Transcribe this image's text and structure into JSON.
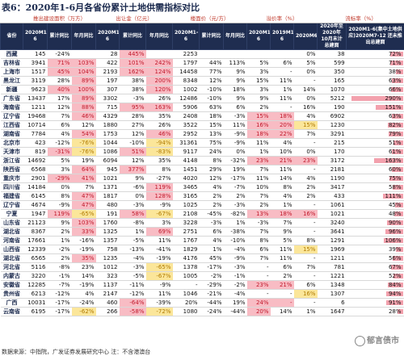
{
  "title": "表6：2020年1-6月各省份累计土地供需指标对比",
  "group_headers": [
    "推出建设面积（万方）",
    "出让金（亿元）",
    "楼面价（元/方）",
    "溢价率（%）",
    "流标率（%）"
  ],
  "columns": [
    "省份",
    "2020M1-6",
    "累计同比",
    "年月同比",
    "2020M1-6",
    "累计同比",
    "年月同比",
    "2020M1-6",
    "累计同比",
    "年月同比",
    "2020M1-6",
    "2019M1-6",
    "2020M6",
    "2020年至2020年10月末计总建面",
    "2020M1-6(集中土地供应)2020M7-12 还未推出总建面"
  ],
  "rows": [
    {
      "p": "西藏",
      "v": [
        "145",
        "-24%",
        "",
        "28",
        "445%",
        "",
        "2253",
        "",
        "",
        "",
        "",
        "0%",
        "38",
        "72%"
      ],
      "h": [
        0,
        0,
        0,
        0,
        1,
        0,
        0,
        0,
        0,
        0,
        0,
        0,
        0,
        1
      ]
    },
    {
      "p": "吉林省",
      "v": [
        "3941",
        "71%",
        "103%",
        "422",
        "101%",
        "242%",
        "1797",
        "44%",
        "113%",
        "5%",
        "6%",
        "5%",
        "599",
        "71%"
      ],
      "h": [
        0,
        1,
        1,
        0,
        1,
        1,
        0,
        0,
        0,
        0,
        0,
        0,
        0,
        1
      ]
    },
    {
      "p": "上海市",
      "v": [
        "1517",
        "45%",
        "104%",
        "2193",
        "162%",
        "124%",
        "14458",
        "77%",
        "9%",
        "3%",
        "-",
        "0%",
        "350",
        "38%"
      ],
      "h": [
        0,
        1,
        1,
        0,
        1,
        1,
        0,
        0,
        0,
        0,
        0,
        0,
        0,
        1
      ]
    },
    {
      "p": "黑龙江",
      "v": [
        "3119",
        "28%",
        "89%",
        "197",
        "38%",
        "200%",
        "8348",
        "12%",
        "9%",
        "15%",
        "11%",
        "-",
        "165",
        "63%"
      ],
      "h": [
        0,
        0,
        1,
        0,
        0,
        1,
        0,
        0,
        0,
        0,
        0,
        0,
        0,
        1
      ]
    },
    {
      "p": "新疆",
      "v": [
        "9623",
        "40%",
        "100%",
        "307",
        "38%",
        "120%",
        "1002",
        "-10%",
        "18%",
        "3%",
        "1%",
        "14%",
        "1070",
        "66%"
      ],
      "h": [
        0,
        1,
        1,
        0,
        0,
        1,
        0,
        0,
        0,
        0,
        0,
        0,
        0,
        1
      ]
    },
    {
      "p": "广东省",
      "v": [
        "13437",
        "17%",
        "89%",
        "3302",
        "-3%",
        "26%",
        "12486",
        "-10%",
        "9%",
        "9%",
        "11%",
        "0%",
        "5212",
        "290%"
      ],
      "h": [
        0,
        0,
        1,
        0,
        0,
        0,
        0,
        0,
        0,
        0,
        0,
        0,
        0,
        1
      ]
    },
    {
      "p": "海南省",
      "v": [
        "1211",
        "12%",
        "88%",
        "715",
        "95%",
        "163%",
        "5906",
        "63%",
        "6%",
        "2%",
        "-",
        "16%",
        "190",
        "151%"
      ],
      "h": [
        0,
        0,
        1,
        0,
        1,
        1,
        0,
        0,
        0,
        0,
        0,
        0,
        0,
        1
      ]
    },
    {
      "p": "辽宁省",
      "v": [
        "19468",
        "7%",
        "46%",
        "4329",
        "28%",
        "35%",
        "2408",
        "18%",
        "-3%",
        "15%",
        "18%",
        "4%",
        "6902",
        "63%"
      ],
      "h": [
        0,
        0,
        1,
        0,
        0,
        0,
        0,
        0,
        0,
        1,
        1,
        0,
        0,
        1
      ]
    },
    {
      "p": "江西省",
      "v": [
        "10714",
        "6%",
        "12%",
        "1880",
        "27%",
        "26%",
        "3522",
        "15%",
        "11%",
        "16%",
        "20%",
        "15%",
        "1230",
        "82%"
      ],
      "h": [
        0,
        0,
        0,
        0,
        0,
        0,
        0,
        0,
        0,
        1,
        1,
        2,
        0,
        1
      ]
    },
    {
      "p": "湖南省",
      "v": [
        "7784",
        "4%",
        "54%",
        "1753",
        "12%",
        "46%",
        "2952",
        "13%",
        "-9%",
        "18%",
        "22%",
        "7%",
        "3291",
        "79%"
      ],
      "h": [
        0,
        0,
        1,
        0,
        0,
        1,
        0,
        0,
        0,
        1,
        1,
        0,
        0,
        1
      ]
    },
    {
      "p": "北京市",
      "v": [
        "423",
        "-12%",
        "-76%",
        "1044",
        "-10%",
        "-94%",
        "31361",
        "75%",
        "-9%",
        "11%",
        "4%",
        "-",
        "215",
        "51%"
      ],
      "h": [
        0,
        0,
        2,
        0,
        0,
        2,
        0,
        0,
        0,
        0,
        0,
        0,
        0,
        1
      ]
    },
    {
      "p": "天津市",
      "v": [
        "819",
        "-31%",
        "-76%",
        "1086",
        "51%",
        "-83%",
        "9117",
        "24%",
        "0%",
        "1%",
        "10%",
        "0%",
        "170",
        "61%"
      ],
      "h": [
        0,
        1,
        2,
        0,
        1,
        2,
        0,
        0,
        0,
        0,
        0,
        0,
        0,
        1
      ]
    },
    {
      "p": "浙江省",
      "v": [
        "14692",
        "5%",
        "19%",
        "6094",
        "12%",
        "35%",
        "4148",
        "8%",
        "-32%",
        "23%",
        "21%",
        "23%",
        "3172",
        "163%"
      ],
      "h": [
        0,
        0,
        0,
        0,
        0,
        0,
        0,
        0,
        0,
        1,
        1,
        1,
        0,
        1
      ]
    },
    {
      "p": "陕西省",
      "v": [
        "6568",
        "3%",
        "64%",
        "945",
        "377%",
        "8%",
        "1451",
        "29%",
        "19%",
        "7%",
        "11%",
        "-",
        "2181",
        "60%"
      ],
      "h": [
        0,
        0,
        1,
        0,
        1,
        0,
        0,
        0,
        0,
        0,
        0,
        0,
        0,
        1
      ]
    },
    {
      "p": "重庆市",
      "v": [
        "2901",
        "-29%",
        "41%",
        "1021",
        "9%",
        "-27%",
        "4020",
        "12%",
        "-17%",
        "11%",
        "14%",
        "4%",
        "1190",
        "75%"
      ],
      "h": [
        0,
        1,
        1,
        0,
        0,
        0,
        0,
        0,
        0,
        0,
        0,
        0,
        0,
        1
      ]
    },
    {
      "p": "四川省",
      "v": [
        "14184",
        "0%",
        "7%",
        "1371",
        "-6%",
        "119%",
        "3465",
        "4%",
        "-7%",
        "10%",
        "8%",
        "2%",
        "3417",
        "58%"
      ],
      "h": [
        0,
        0,
        0,
        0,
        0,
        1,
        0,
        0,
        0,
        0,
        0,
        0,
        0,
        1
      ]
    },
    {
      "p": "福建省",
      "v": [
        "6145",
        "8%",
        "47%",
        "1817",
        "0%",
        "128%",
        "3165",
        "2%",
        "2%",
        "7%",
        "4%",
        "2%",
        "433",
        "111%"
      ],
      "h": [
        0,
        0,
        1,
        0,
        0,
        1,
        0,
        0,
        0,
        0,
        0,
        0,
        0,
        1
      ]
    },
    {
      "p": "辽宁省",
      "v": [
        "4674",
        "-9%",
        "47%",
        "480",
        "-3%",
        "-9%",
        "1025",
        "2%",
        "-3%",
        "2%",
        "1%",
        "-",
        "1061",
        "45%"
      ],
      "h": [
        0,
        0,
        1,
        0,
        0,
        0,
        0,
        0,
        0,
        0,
        0,
        0,
        0,
        1
      ]
    },
    {
      "p": "宁夏",
      "v": [
        "1947",
        "119%",
        "-65%",
        "191",
        "58%",
        "-67%",
        "2108",
        "-45%",
        "-82%",
        "13%",
        "18%",
        "16%",
        "1021",
        "48%"
      ],
      "h": [
        0,
        1,
        2,
        0,
        1,
        2,
        0,
        0,
        0,
        1,
        1,
        1,
        0,
        1
      ]
    },
    {
      "p": "山东省",
      "v": [
        "21123",
        "9%",
        "103%",
        "1760",
        "-8%",
        "3%",
        "3228",
        "-3%",
        "1%",
        "-3%",
        "7%",
        "-",
        "3240",
        "90%"
      ],
      "h": [
        0,
        0,
        1,
        0,
        0,
        0,
        0,
        0,
        0,
        0,
        0,
        0,
        0,
        1
      ]
    },
    {
      "p": "湖北省",
      "v": [
        "8367",
        "2%",
        "33%",
        "1325",
        "1%",
        "69%",
        "2751",
        "6%",
        "-38%",
        "7%",
        "9%",
        "-",
        "3641",
        "96%"
      ],
      "h": [
        0,
        0,
        1,
        0,
        0,
        1,
        0,
        0,
        0,
        0,
        0,
        0,
        0,
        1
      ]
    },
    {
      "p": "河南省",
      "v": [
        "17661",
        "1%",
        "-16%",
        "1357",
        "-5%",
        "11%",
        "1767",
        "4%",
        "-10%",
        "8%",
        "5%",
        "8%",
        "1291",
        "106%"
      ],
      "h": [
        0,
        0,
        0,
        0,
        0,
        0,
        0,
        0,
        0,
        0,
        0,
        0,
        0,
        1
      ]
    },
    {
      "p": "山西省",
      "v": [
        "12339",
        "-2%",
        "-19%",
        "758",
        "-13%",
        "-41%",
        "1829",
        "1%",
        "-4%",
        "6%",
        "11%",
        "15%",
        "1969",
        "39%"
      ],
      "h": [
        0,
        0,
        0,
        0,
        0,
        0,
        0,
        0,
        0,
        0,
        0,
        2,
        0,
        1
      ]
    },
    {
      "p": "湖北省",
      "v": [
        "6565",
        "2%",
        "35%",
        "1235",
        "-4%",
        "-19%",
        "4176",
        "45%",
        "-9%",
        "7%",
        "11%",
        "-",
        "1211",
        "56%"
      ],
      "h": [
        0,
        0,
        1,
        0,
        0,
        0,
        0,
        0,
        0,
        0,
        0,
        0,
        0,
        1
      ]
    },
    {
      "p": "河北省",
      "v": [
        "5116",
        "-8%",
        "23%",
        "1012",
        "-3%",
        "-65%",
        "1378",
        "-17%",
        "-3%",
        "-",
        "6%",
        "7%",
        "781",
        "67%"
      ],
      "h": [
        0,
        0,
        0,
        0,
        0,
        2,
        0,
        0,
        0,
        0,
        0,
        0,
        0,
        1
      ]
    },
    {
      "p": "内蒙古",
      "v": [
        "3220",
        "-1%",
        "14%",
        "323",
        "-5%",
        "-67%",
        "1005",
        "-2%",
        "-1%",
        "-",
        "2%",
        "-",
        "1221",
        "52%"
      ],
      "h": [
        0,
        0,
        0,
        0,
        0,
        2,
        0,
        0,
        0,
        0,
        0,
        0,
        0,
        1
      ]
    },
    {
      "p": "安徽省",
      "v": [
        "12285",
        "-7%",
        "-19%",
        "1137",
        "-11%",
        "-9%",
        "-",
        "-29%",
        "-2%",
        "23%",
        "21%",
        "6%",
        "1348",
        "84%"
      ],
      "h": [
        0,
        0,
        0,
        0,
        0,
        0,
        0,
        0,
        0,
        1,
        1,
        0,
        0,
        1
      ]
    },
    {
      "p": "贵州省",
      "v": [
        "6213",
        "-12%",
        "4%",
        "2147",
        "-12%",
        "11%",
        "1046",
        "-21%",
        "-4%",
        "-",
        "-",
        "16%",
        "1307",
        "94%"
      ],
      "h": [
        0,
        0,
        0,
        0,
        0,
        0,
        0,
        0,
        0,
        0,
        0,
        2,
        0,
        1
      ]
    },
    {
      "p": "广西",
      "v": [
        "10031",
        "-17%",
        "-24%",
        "460",
        "-64%",
        "-39%",
        "20%",
        "-44%",
        "19%",
        "24%",
        "-",
        "-",
        "6",
        "91%"
      ],
      "h": [
        0,
        0,
        0,
        0,
        1,
        0,
        0,
        0,
        0,
        1,
        1,
        0,
        0,
        1
      ]
    },
    {
      "p": "云南省",
      "v": [
        "6195",
        "-17%",
        "-62%",
        "266",
        "-58%",
        "-72%",
        "1080",
        "-24%",
        "-44%",
        "20%",
        "14%",
        "1%",
        "1647",
        "28%"
      ],
      "h": [
        0,
        0,
        2,
        0,
        1,
        2,
        0,
        0,
        0,
        1,
        0,
        0,
        0,
        1
      ]
    }
  ],
  "footnote": "数据来源：中指院，广发证券发展研究中心      注：不含港澳台",
  "watermark": "郁言债市",
  "colors": {
    "header_bg": "#1f2d50",
    "red_cell": "#f8bcc4",
    "yellow_cell": "#fbe69a",
    "bar": "#f3a1ad"
  }
}
